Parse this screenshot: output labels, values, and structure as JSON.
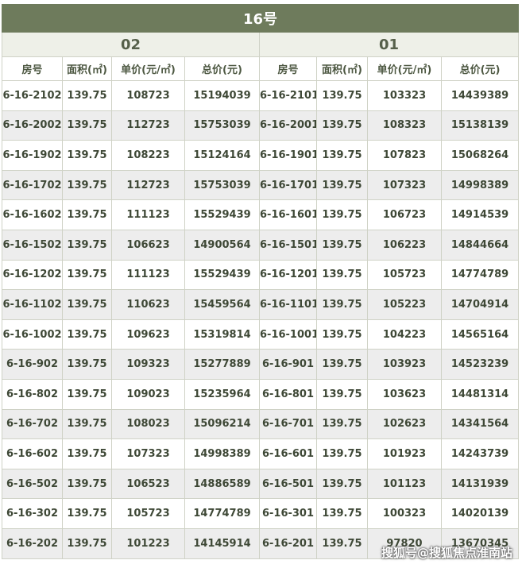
{
  "title": "16号",
  "groups": [
    "02",
    "01"
  ],
  "columns": [
    "房号",
    "面积(㎡)",
    "单价(元/㎡)",
    "总价(元)",
    "房号",
    "面积(㎡)",
    "单价(元/㎡)",
    "总价(元)"
  ],
  "rows": [
    [
      "6-16-2102",
      139.75,
      108723,
      15194039,
      "6-16-2101",
      139.75,
      103323,
      14439389
    ],
    [
      "6-16-2002",
      139.75,
      112723,
      15753039,
      "6-16-2001",
      139.75,
      108323,
      15138139
    ],
    [
      "6-16-1902",
      139.75,
      108223,
      15124164,
      "6-16-1901",
      139.75,
      107823,
      15068264
    ],
    [
      "6-16-1702",
      139.75,
      112723,
      15753039,
      "6-16-1701",
      139.75,
      107323,
      14998389
    ],
    [
      "6-16-1602",
      139.75,
      111123,
      15529439,
      "6-16-1601",
      139.75,
      106723,
      14914539
    ],
    [
      "6-16-1502",
      139.75,
      106623,
      14900564,
      "6-16-1501",
      139.75,
      106223,
      14844664
    ],
    [
      "6-16-1202",
      139.75,
      111123,
      15529439,
      "6-16-1201",
      139.75,
      105723,
      14774789
    ],
    [
      "6-16-1102",
      139.75,
      110623,
      15459564,
      "6-16-1101",
      139.75,
      105223,
      14704914
    ],
    [
      "6-16-1002",
      139.75,
      109623,
      15319814,
      "6-16-1001",
      139.75,
      104223,
      14565164
    ],
    [
      "6-16-902",
      139.75,
      109323,
      15277889,
      "6-16-901",
      139.75,
      103923,
      14523239
    ],
    [
      "6-16-802",
      139.75,
      109023,
      15235964,
      "6-16-801",
      139.75,
      103623,
      14481314
    ],
    [
      "6-16-702",
      139.75,
      108023,
      15096214,
      "6-16-701",
      139.75,
      102623,
      14341564
    ],
    [
      "6-16-602",
      139.75,
      107323,
      14998389,
      "6-16-601",
      139.75,
      101923,
      14243739
    ],
    [
      "6-16-502",
      139.75,
      106523,
      14886589,
      "6-16-501",
      139.75,
      101123,
      14131939
    ],
    [
      "6-16-302",
      139.75,
      105723,
      14774789,
      "6-16-301",
      139.75,
      100323,
      14020139
    ],
    [
      "6-16-202",
      139.75,
      101223,
      14145914,
      "6-16-201",
      139.75,
      97820,
      13670345
    ]
  ],
  "watermark": "搜狐号@搜狐焦点淮南站"
}
